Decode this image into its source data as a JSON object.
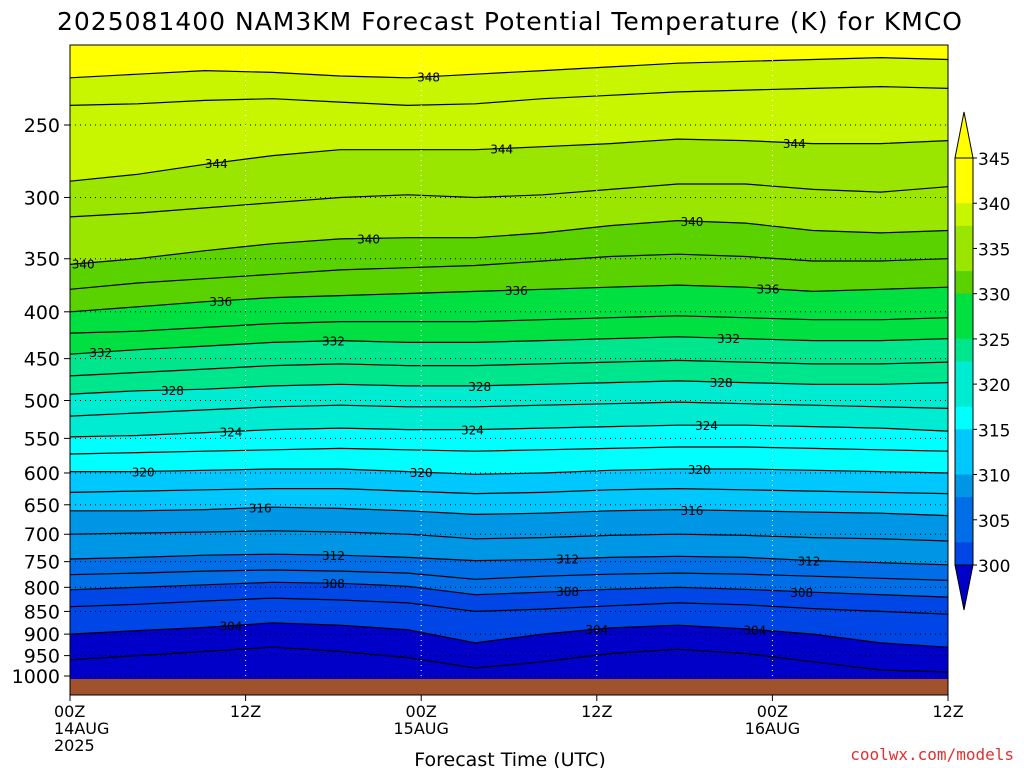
{
  "chart_data": {
    "type": "heatmap",
    "title": "2025081400 NAM3KM Forecast Potential Temperature (K) for KMCO",
    "xlabel": "Forecast Time (UTC)",
    "ylabel": "",
    "credit": "coolwx.com/models",
    "x_range_hours": [
      0,
      60
    ],
    "y_range_hPa": [
      1030,
      210
    ],
    "x_ticks": [
      {
        "hour": 0,
        "lines": [
          "00Z",
          "14AUG",
          "2025"
        ]
      },
      {
        "hour": 12,
        "lines": [
          "12Z"
        ]
      },
      {
        "hour": 24,
        "lines": [
          "00Z",
          "15AUG"
        ]
      },
      {
        "hour": 36,
        "lines": [
          "12Z"
        ]
      },
      {
        "hour": 48,
        "lines": [
          "00Z",
          "16AUG"
        ]
      },
      {
        "hour": 60,
        "lines": [
          "12Z"
        ]
      }
    ],
    "y_ticks": [
      "250",
      "300",
      "350",
      "400",
      "450",
      "500",
      "550",
      "600",
      "650",
      "700",
      "750",
      "800",
      "850",
      "900",
      "950",
      "1000"
    ],
    "colorbar": {
      "labels": [
        "345",
        "340",
        "335",
        "330",
        "325",
        "320",
        "315",
        "310",
        "305",
        "300"
      ],
      "colors": [
        "#ffff00",
        "#c8f500",
        "#9ae600",
        "#5ad200",
        "#00e040",
        "#00e68c",
        "#00ecd2",
        "#00ffff",
        "#00c8ff",
        "#0096e6",
        "#006ee6",
        "#0046e6",
        "#0000c8"
      ]
    },
    "series": [
      {
        "name": "",
        "values": [
          {
            "x": 0,
            "p": 1010
          },
          {
            "x": 60,
            "p": 1010
          }
        ]
      }
    ],
    "contour_levels": [
      {
        "value": 348,
        "p": [
          222,
          220,
          218,
          219,
          221,
          222,
          220,
          218,
          216,
          214,
          213,
          212,
          211,
          212
        ],
        "labels": [
          {
            "x": 24.5,
            "text": "348"
          }
        ]
      },
      {
        "value": 346,
        "p": [
          238,
          237,
          235,
          234,
          236,
          238,
          237,
          234,
          232,
          230,
          229,
          228,
          227,
          228
        ],
        "labels": []
      },
      {
        "value": 344,
        "p": [
          288,
          283,
          276,
          270,
          266,
          266,
          266,
          264,
          262,
          259,
          260,
          262,
          262,
          260
        ],
        "labels": [
          {
            "x": 10,
            "text": "344"
          },
          {
            "x": 29.5,
            "text": "344"
          },
          {
            "x": 49.5,
            "text": "344"
          }
        ]
      },
      {
        "value": 342,
        "p": [
          315,
          312,
          308,
          304,
          300,
          298,
          300,
          298,
          294,
          290,
          290,
          294,
          296,
          292
        ],
        "labels": []
      },
      {
        "value": 340,
        "p": [
          355,
          350,
          343,
          337,
          333,
          332,
          332,
          328,
          322,
          318,
          320,
          326,
          328,
          326
        ],
        "labels": [
          {
            "x": 0.9,
            "text": "340"
          },
          {
            "x": 20.4,
            "text": "340"
          },
          {
            "x": 42.5,
            "text": "340"
          }
        ]
      },
      {
        "value": 338,
        "p": [
          378,
          372,
          368,
          364,
          360,
          358,
          356,
          352,
          348,
          346,
          348,
          352,
          352,
          350
        ],
        "labels": []
      },
      {
        "value": 336,
        "p": [
          400,
          395,
          390,
          386,
          384,
          382,
          380,
          378,
          376,
          374,
          376,
          380,
          378,
          376
        ],
        "labels": [
          {
            "x": 10.3,
            "text": "336"
          },
          {
            "x": 30.5,
            "text": "336"
          },
          {
            "x": 47.7,
            "text": "336"
          }
        ]
      },
      {
        "value": 334,
        "p": [
          422,
          420,
          416,
          412,
          410,
          410,
          410,
          408,
          406,
          404,
          406,
          408,
          408,
          406
        ],
        "labels": []
      },
      {
        "value": 332,
        "p": [
          445,
          440,
          436,
          432,
          430,
          432,
          432,
          430,
          428,
          426,
          428,
          430,
          430,
          428
        ],
        "labels": [
          {
            "x": 2.1,
            "text": "332"
          },
          {
            "x": 18,
            "text": "332"
          },
          {
            "x": 45,
            "text": "332"
          }
        ]
      },
      {
        "value": 330,
        "p": [
          470,
          466,
          462,
          458,
          456,
          458,
          458,
          456,
          454,
          452,
          454,
          456,
          456,
          454
        ],
        "labels": []
      },
      {
        "value": 328,
        "p": [
          492,
          488,
          486,
          482,
          480,
          482,
          482,
          480,
          478,
          476,
          478,
          480,
          480,
          478
        ],
        "labels": [
          {
            "x": 7,
            "text": "328"
          },
          {
            "x": 28,
            "text": "328"
          },
          {
            "x": 44.5,
            "text": "328"
          }
        ]
      },
      {
        "value": 326,
        "p": [
          520,
          516,
          512,
          508,
          506,
          508,
          508,
          506,
          504,
          502,
          504,
          506,
          508,
          510
        ],
        "labels": []
      },
      {
        "value": 324,
        "p": [
          548,
          546,
          542,
          538,
          536,
          538,
          538,
          536,
          534,
          532,
          532,
          534,
          536,
          540
        ],
        "labels": [
          {
            "x": 11,
            "text": "324"
          },
          {
            "x": 27.5,
            "text": "324"
          },
          {
            "x": 43.5,
            "text": "324"
          }
        ]
      },
      {
        "value": 322,
        "p": [
          572,
          570,
          568,
          566,
          564,
          566,
          568,
          566,
          564,
          562,
          562,
          564,
          566,
          568
        ],
        "labels": []
      },
      {
        "value": 320,
        "p": [
          598,
          598,
          596,
          594,
          594,
          598,
          602,
          600,
          596,
          594,
          594,
          596,
          598,
          600
        ],
        "labels": [
          {
            "x": 5,
            "text": "320"
          },
          {
            "x": 24,
            "text": "320"
          },
          {
            "x": 43,
            "text": "320"
          }
        ]
      },
      {
        "value": 318,
        "p": [
          630,
          628,
          626,
          624,
          624,
          628,
          632,
          630,
          626,
          624,
          626,
          628,
          630,
          632
        ],
        "labels": []
      },
      {
        "value": 316,
        "p": [
          660,
          660,
          658,
          654,
          656,
          660,
          666,
          664,
          660,
          658,
          660,
          662,
          664,
          668
        ],
        "labels": [
          {
            "x": 13,
            "text": "316"
          },
          {
            "x": 42.5,
            "text": "316"
          }
        ]
      },
      {
        "value": 314,
        "p": [
          700,
          698,
          696,
          694,
          696,
          700,
          708,
          706,
          702,
          700,
          702,
          706,
          708,
          712
        ],
        "labels": []
      },
      {
        "value": 312,
        "p": [
          745,
          742,
          738,
          736,
          738,
          742,
          748,
          746,
          742,
          740,
          742,
          748,
          752,
          756
        ],
        "labels": [
          {
            "x": 18,
            "text": "312"
          },
          {
            "x": 34,
            "text": "312"
          },
          {
            "x": 50.5,
            "text": "312"
          }
        ]
      },
      {
        "value": 310,
        "p": [
          775,
          772,
          768,
          766,
          768,
          772,
          784,
          778,
          774,
          772,
          774,
          778,
          782,
          786
        ],
        "labels": []
      },
      {
        "value": 308,
        "p": [
          805,
          800,
          795,
          790,
          792,
          798,
          815,
          810,
          804,
          800,
          804,
          810,
          815,
          820
        ],
        "labels": [
          {
            "x": 18,
            "text": "308"
          },
          {
            "x": 34,
            "text": "308"
          },
          {
            "x": 50,
            "text": "308"
          }
        ]
      },
      {
        "value": 306,
        "p": [
          840,
          835,
          828,
          822,
          826,
          832,
          850,
          845,
          838,
          832,
          836,
          844,
          850,
          856
        ],
        "labels": []
      },
      {
        "value": 304,
        "p": [
          900,
          892,
          885,
          875,
          880,
          890,
          920,
          900,
          886,
          880,
          888,
          900,
          920,
          930
        ],
        "labels": [
          {
            "x": 11,
            "text": "304"
          },
          {
            "x": 36,
            "text": "304"
          },
          {
            "x": 46.8,
            "text": "304"
          }
        ]
      },
      {
        "value": 302,
        "p": [
          960,
          950,
          940,
          930,
          940,
          955,
          980,
          965,
          945,
          935,
          945,
          965,
          985,
          990
        ],
        "labels": []
      }
    ]
  }
}
